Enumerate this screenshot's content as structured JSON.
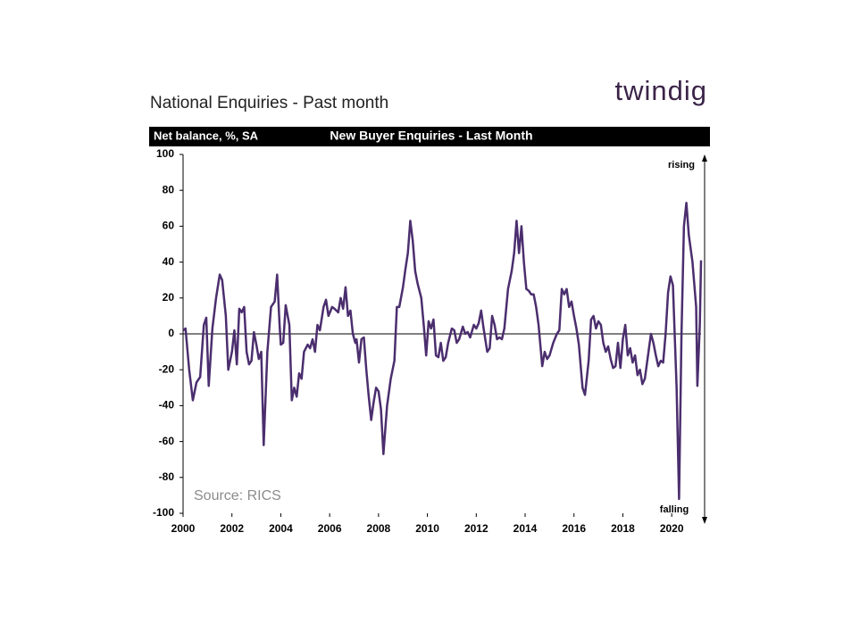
{
  "chart_data": {
    "type": "line",
    "title": "National Enquiries - Past month",
    "logo": "twindig",
    "axis_label": "Net balance, %, SA",
    "subtitle": "New Buyer Enquiries - Last Month",
    "annotations": [
      "rising",
      "falling"
    ],
    "source": "Source: RICS",
    "color": "#4b2e6e",
    "xlim": [
      2000,
      2021.2
    ],
    "xticks": [
      2000,
      2002,
      2004,
      2006,
      2008,
      2010,
      2012,
      2014,
      2016,
      2018,
      2020
    ],
    "ylim": [
      -100,
      100
    ],
    "yticks": [
      -100,
      -80,
      -60,
      -40,
      -20,
      0,
      20,
      40,
      60,
      80,
      100
    ],
    "x": [
      2000.0,
      2000.1,
      2000.25,
      2000.4,
      2000.55,
      2000.7,
      2000.85,
      2000.95,
      2001.05,
      2001.2,
      2001.35,
      2001.5,
      2001.6,
      2001.75,
      2001.85,
      2002.0,
      2002.1,
      2002.2,
      2002.3,
      2002.4,
      2002.5,
      2002.6,
      2002.7,
      2002.8,
      2002.9,
      2003.0,
      2003.1,
      2003.2,
      2003.3,
      2003.45,
      2003.6,
      2003.75,
      2003.85,
      2003.95,
      2004.0,
      2004.1,
      2004.2,
      2004.35,
      2004.45,
      2004.55,
      2004.65,
      2004.75,
      2004.85,
      2004.95,
      2005.1,
      2005.2,
      2005.3,
      2005.4,
      2005.5,
      2005.6,
      2005.75,
      2005.85,
      2005.95,
      2006.1,
      2006.2,
      2006.35,
      2006.45,
      2006.55,
      2006.65,
      2006.75,
      2006.85,
      2006.95,
      2007.05,
      2007.1,
      2007.2,
      2007.3,
      2007.4,
      2007.5,
      2007.6,
      2007.7,
      2007.8,
      2007.9,
      2008.0,
      2008.1,
      2008.2,
      2008.35,
      2008.5,
      2008.65,
      2008.75,
      2008.85,
      2009.0,
      2009.1,
      2009.2,
      2009.3,
      2009.4,
      2009.5,
      2009.6,
      2009.75,
      2009.85,
      2009.95,
      2010.05,
      2010.15,
      2010.25,
      2010.35,
      2010.45,
      2010.55,
      2010.65,
      2010.75,
      2010.85,
      2011.0,
      2011.1,
      2011.2,
      2011.3,
      2011.45,
      2011.55,
      2011.65,
      2011.75,
      2011.9,
      2012.0,
      2012.1,
      2012.2,
      2012.3,
      2012.45,
      2012.55,
      2012.65,
      2012.75,
      2012.85,
      2012.95,
      2013.05,
      2013.15,
      2013.3,
      2013.45,
      2013.55,
      2013.65,
      2013.75,
      2013.85,
      2013.95,
      2014.05,
      2014.15,
      2014.25,
      2014.35,
      2014.45,
      2014.55,
      2014.7,
      2014.8,
      2014.9,
      2015.0,
      2015.15,
      2015.3,
      2015.4,
      2015.5,
      2015.6,
      2015.7,
      2015.8,
      2015.9,
      2016.0,
      2016.1,
      2016.2,
      2016.35,
      2016.45,
      2016.6,
      2016.7,
      2016.8,
      2016.9,
      2017.0,
      2017.1,
      2017.2,
      2017.3,
      2017.4,
      2017.5,
      2017.6,
      2017.7,
      2017.8,
      2017.9,
      2018.0,
      2018.1,
      2018.2,
      2018.3,
      2018.4,
      2018.5,
      2018.6,
      2018.7,
      2018.8,
      2018.9,
      2019.0,
      2019.15,
      2019.25,
      2019.35,
      2019.45,
      2019.55,
      2019.65,
      2019.75,
      2019.85,
      2019.95,
      2020.05,
      2020.2,
      2020.3,
      2020.4,
      2020.5,
      2020.6,
      2020.7,
      2020.85,
      2021.0,
      2021.05,
      2021.15,
      2021.2
    ],
    "values": [
      2,
      3,
      -20,
      -37,
      -27,
      -24,
      5,
      9,
      -29,
      3,
      20,
      33,
      30,
      10,
      -20,
      -10,
      2,
      -17,
      14,
      12,
      15,
      -10,
      -17,
      -15,
      1,
      -6,
      -14,
      -10,
      -62,
      -10,
      15,
      18,
      33,
      5,
      -6,
      -5,
      16,
      5,
      -37,
      -30,
      -35,
      -22,
      -25,
      -10,
      -6,
      -8,
      -3,
      -10,
      5,
      2,
      15,
      19,
      10,
      15,
      14,
      12,
      20,
      14,
      26,
      10,
      13,
      0,
      -5,
      -3,
      -16,
      -3,
      -2,
      -20,
      -35,
      -48,
      -38,
      -30,
      -32,
      -42,
      -67,
      -40,
      -25,
      -15,
      15,
      15,
      26,
      36,
      45,
      63,
      52,
      35,
      28,
      20,
      5,
      -12,
      7,
      3,
      8,
      -12,
      -13,
      -5,
      -15,
      -13,
      -5,
      3,
      2,
      -5,
      -3,
      4,
      0,
      1,
      -2,
      5,
      3,
      6,
      13,
      3,
      -10,
      -8,
      10,
      5,
      -3,
      -2,
      -3,
      3,
      25,
      35,
      45,
      63,
      45,
      60,
      40,
      25,
      24,
      22,
      22,
      15,
      5,
      -18,
      -10,
      -14,
      -12,
      -5,
      0,
      2,
      25,
      22,
      25,
      15,
      18,
      10,
      3,
      -6,
      -30,
      -34,
      -15,
      8,
      10,
      3,
      7,
      5,
      -5,
      -10,
      -7,
      -14,
      -19,
      -18,
      -5,
      -19,
      -3,
      5,
      -12,
      -8,
      -16,
      -12,
      -23,
      -20,
      -28,
      -25,
      -15,
      0,
      -5,
      -12,
      -18,
      -15,
      -16,
      0,
      23,
      32,
      27,
      -30,
      -92,
      0,
      60,
      73,
      55,
      40,
      15,
      -29,
      5,
      41
    ]
  }
}
